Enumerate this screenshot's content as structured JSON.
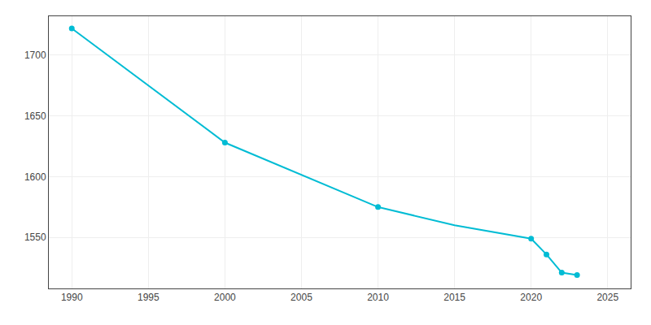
{
  "chart_data": {
    "type": "line",
    "x": [
      1990,
      2000,
      2010,
      2015,
      2020,
      2021,
      2022,
      2023
    ],
    "series": [
      {
        "type": "line",
        "color": "#00BCD4",
        "values": [
          1722,
          1628,
          1575,
          1560,
          1549,
          1536,
          1521,
          1519
        ]
      },
      {
        "type": "scatter",
        "marker": "circle",
        "color": "#00BCD4",
        "values": [
          1722,
          1628,
          1575,
          null,
          1549,
          1536,
          1521,
          1519
        ]
      }
    ],
    "xlim": [
      1988.5,
      2026.5
    ],
    "xticks": [
      1990,
      1995,
      2000,
      2005,
      2010,
      2015,
      2020,
      2025
    ],
    "ylim": [
      1508,
      1732
    ],
    "yticks": [
      1550,
      1600,
      1650,
      1700
    ],
    "grid": true
  }
}
